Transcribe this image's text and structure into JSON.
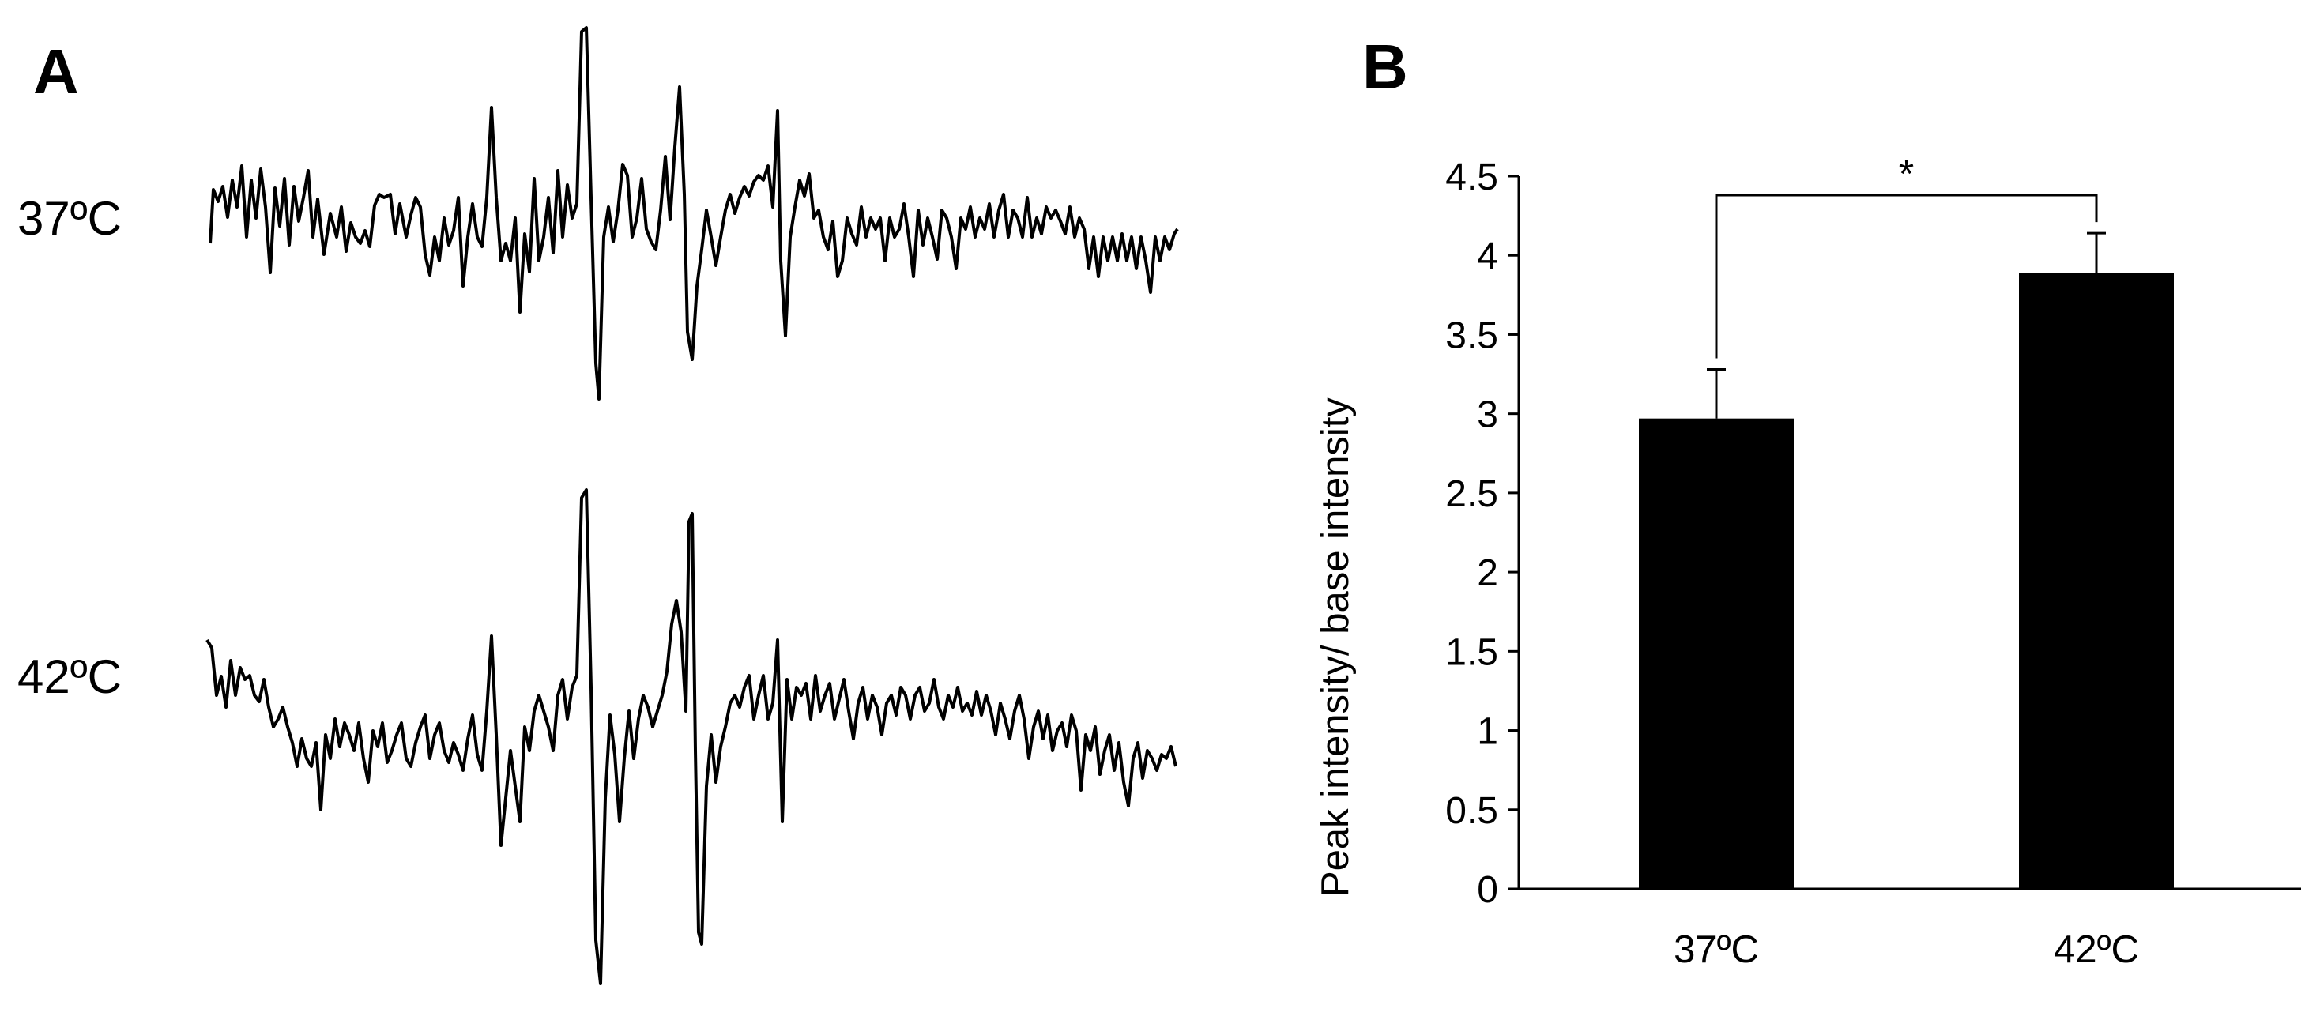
{
  "panels": {
    "a": {
      "letter": "A"
    },
    "b": {
      "letter": "B"
    }
  },
  "traces": [
    {
      "label": "37ºC"
    },
    {
      "label": "42ºC"
    }
  ],
  "colors": {
    "bar": "#000000",
    "axis": "#000000",
    "trace": "#000000",
    "background": "#ffffff"
  },
  "chart_data": {
    "type": "bar",
    "title": "",
    "xlabel": "",
    "ylabel": "Peak intensity/ base intensity",
    "categories": [
      "37ºC",
      "42ºC"
    ],
    "values": [
      2.97,
      3.89
    ],
    "error_bars": [
      0.31,
      0.25
    ],
    "ylim": [
      0,
      4.5
    ],
    "yticks": [
      0,
      0.5,
      1,
      1.5,
      2,
      2.5,
      3,
      3.5,
      4,
      4.5
    ],
    "ytick_labels": [
      "0",
      "0.5",
      "1",
      "1.5",
      "2",
      "2.5",
      "3",
      "3.5",
      "4",
      "4.5"
    ],
    "grid": false,
    "legend": "none",
    "significance": {
      "between": [
        "37ºC",
        "42ºC"
      ],
      "label": "*"
    }
  }
}
